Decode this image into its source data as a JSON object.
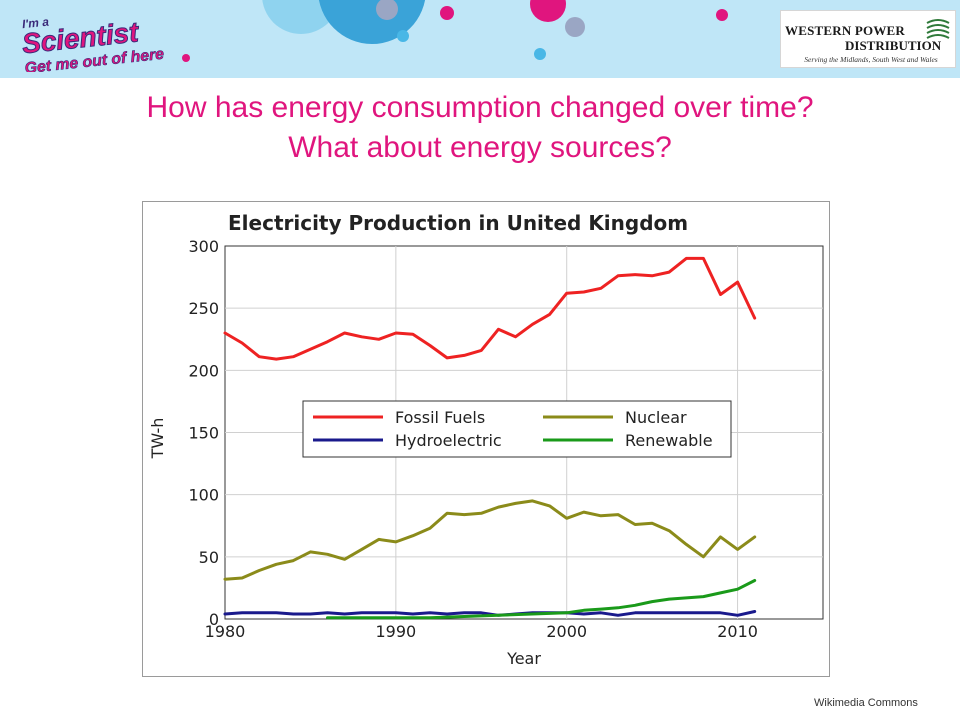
{
  "header": {
    "brand_line1": "I'm a",
    "brand_line2": "Scientist",
    "brand_line3": "Get me out of here",
    "sponsor_line1": "WESTERN POWER",
    "sponsor_line2": "DISTRIBUTION",
    "sponsor_tagline": "Serving the Midlands, South West and Wales",
    "banner_color": "#bfe6f7",
    "accent_color": "#e0157e"
  },
  "slide": {
    "title_line1": "How has energy consumption changed over time?",
    "title_line2": "What about energy sources?"
  },
  "credit": "Wikimedia Commons",
  "chart_data": {
    "type": "line",
    "title": "Electricity Production in United Kingdom",
    "xlabel": "Year",
    "ylabel": "TW-h",
    "xlim": [
      1980,
      2015
    ],
    "ylim": [
      0,
      300
    ],
    "xticks": [
      "1980",
      "1990",
      "2000",
      "2010"
    ],
    "yticks": [
      "0",
      "50",
      "100",
      "150",
      "200",
      "250",
      "300"
    ],
    "grid": true,
    "legend_position": "center",
    "series": [
      {
        "name": "Fossil Fuels",
        "color": "#ee2222",
        "x": [
          1980,
          1981,
          1982,
          1983,
          1984,
          1985,
          1986,
          1987,
          1988,
          1989,
          1990,
          1991,
          1992,
          1993,
          1994,
          1995,
          1996,
          1997,
          1998,
          1999,
          2000,
          2001,
          2002,
          2003,
          2004,
          2005,
          2006,
          2007,
          2008,
          2009,
          2010,
          2011
        ],
        "values": [
          230,
          222,
          211,
          209,
          211,
          217,
          223,
          230,
          227,
          225,
          230,
          229,
          220,
          210,
          212,
          216,
          233,
          227,
          237,
          245,
          262,
          263,
          266,
          276,
          277,
          276,
          279,
          290,
          290,
          261,
          271,
          242
        ]
      },
      {
        "name": "Nuclear",
        "color": "#8b8b1a",
        "x": [
          1980,
          1981,
          1982,
          1983,
          1984,
          1985,
          1986,
          1987,
          1988,
          1989,
          1990,
          1991,
          1992,
          1993,
          1994,
          1995,
          1996,
          1997,
          1998,
          1999,
          2000,
          2001,
          2002,
          2003,
          2004,
          2005,
          2006,
          2007,
          2008,
          2009,
          2010,
          2011
        ],
        "values": [
          32,
          33,
          39,
          44,
          47,
          54,
          52,
          48,
          56,
          64,
          62,
          67,
          73,
          85,
          84,
          85,
          90,
          93,
          95,
          91,
          81,
          86,
          83,
          84,
          76,
          77,
          71,
          60,
          50,
          66,
          56,
          66
        ]
      },
      {
        "name": "Hydroelectric",
        "color": "#1a1a8c",
        "x": [
          1980,
          1981,
          1982,
          1983,
          1984,
          1985,
          1986,
          1987,
          1988,
          1989,
          1990,
          1991,
          1992,
          1993,
          1994,
          1995,
          1996,
          1997,
          1998,
          1999,
          2000,
          2001,
          2002,
          2003,
          2004,
          2005,
          2006,
          2007,
          2008,
          2009,
          2010,
          2011
        ],
        "values": [
          4,
          5,
          5,
          5,
          4,
          4,
          5,
          4,
          5,
          5,
          5,
          4,
          5,
          4,
          5,
          5,
          3,
          4,
          5,
          5,
          5,
          4,
          5,
          3,
          5,
          5,
          5,
          5,
          5,
          5,
          3,
          6
        ]
      },
      {
        "name": "Renewable",
        "color": "#1a9a1a",
        "x": [
          1986,
          1988,
          1990,
          1992,
          1994,
          1996,
          1998,
          2000,
          2001,
          2002,
          2003,
          2004,
          2005,
          2006,
          2007,
          2008,
          2009,
          2010,
          2011
        ],
        "values": [
          1,
          1,
          1,
          1,
          2,
          3,
          4,
          5,
          7,
          8,
          9,
          11,
          14,
          16,
          17,
          18,
          21,
          24,
          31
        ]
      }
    ]
  }
}
